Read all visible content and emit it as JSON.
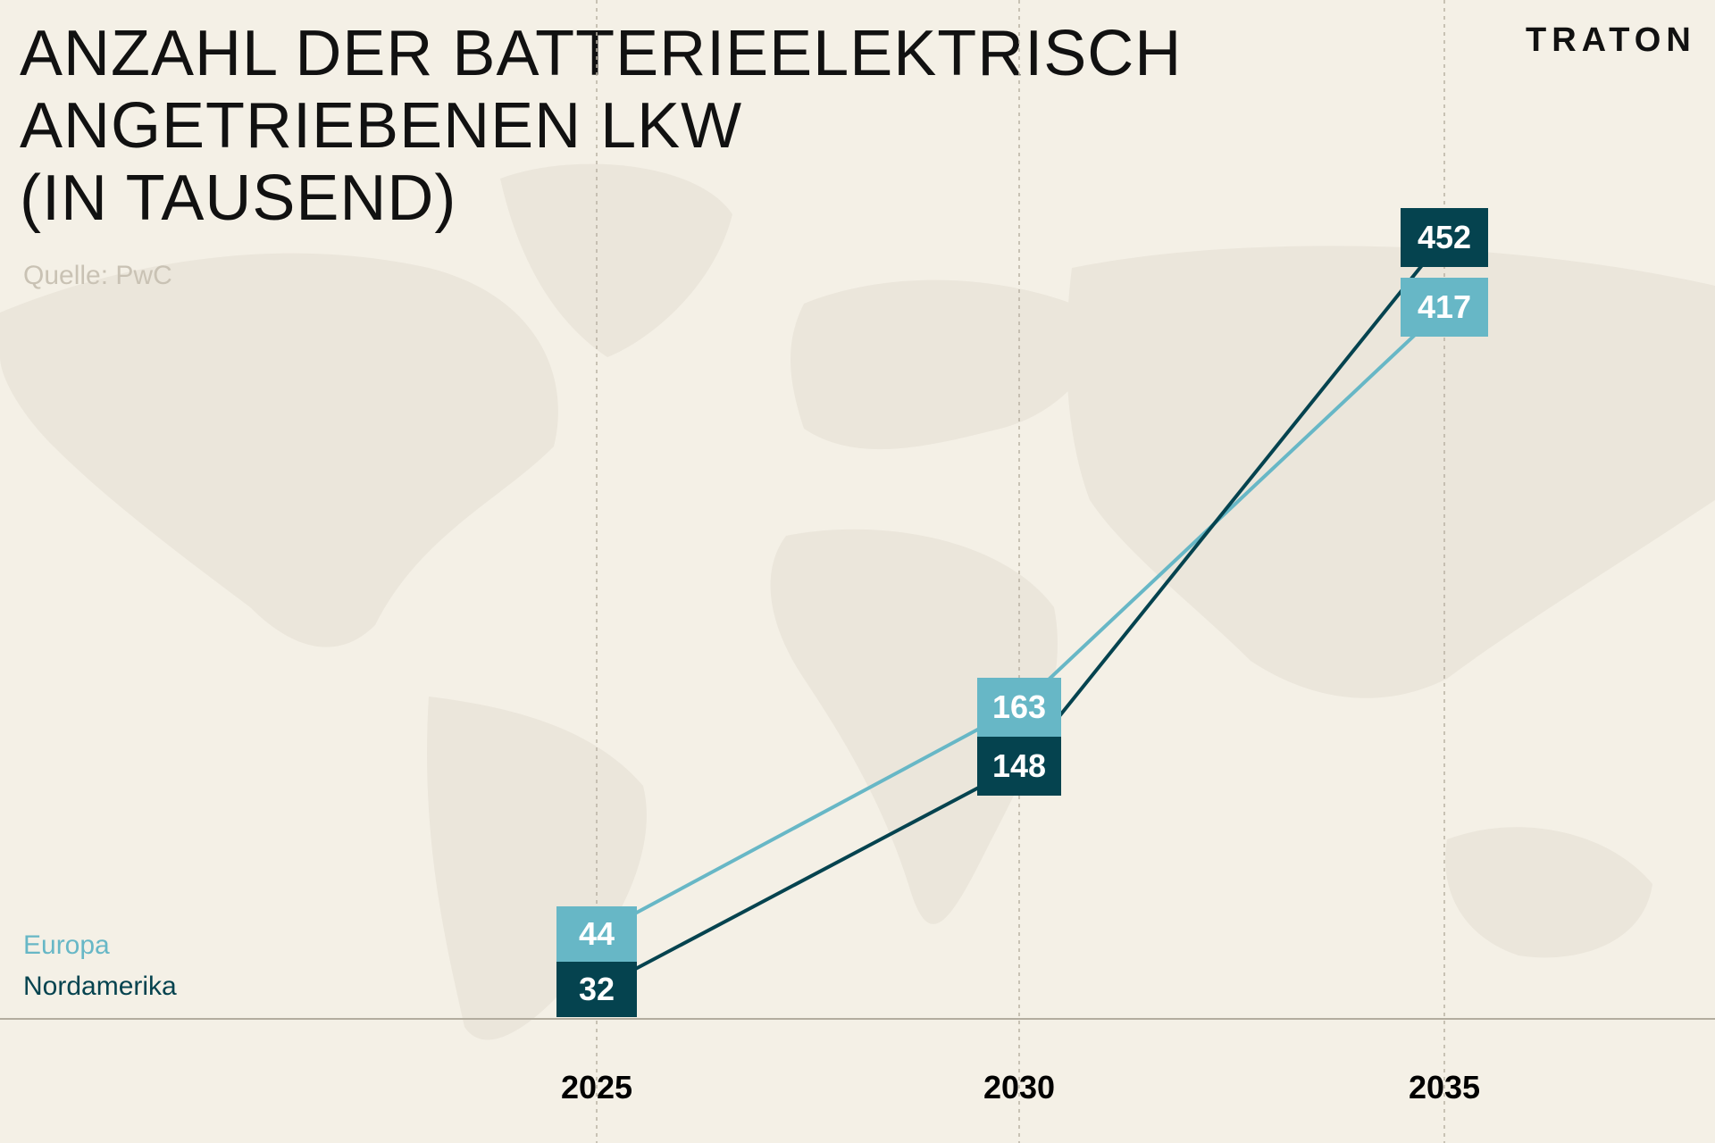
{
  "title_lines": [
    "ANZAHL DER BATTERIEELEKTRISCH",
    "ANGETRIEBENEN LKW",
    "(IN TAUSEND)"
  ],
  "source": "Quelle: PwC",
  "logo": "TRATON",
  "colors": {
    "background": "#f4f0e6",
    "map": "#ebe6db",
    "europa": "#67b7c6",
    "nordamerika": "#05434f"
  },
  "chart_data": {
    "type": "line",
    "title": "ANZAHL DER BATTERIEELEKTRISCH ANGETRIEBENEN LKW (IN TAUSEND)",
    "categories": [
      "2025",
      "2030",
      "2035"
    ],
    "series": [
      {
        "name": "Europa",
        "values": [
          44,
          163,
          417
        ],
        "labels": [
          "44",
          "163",
          "417"
        ]
      },
      {
        "name": "Nordamerika",
        "values": [
          32,
          148,
          452
        ],
        "labels": [
          "32",
          "148",
          "452"
        ]
      }
    ],
    "legend": "bottom-left",
    "grid": "vertical dashed lines at each year",
    "data_labels": true
  }
}
